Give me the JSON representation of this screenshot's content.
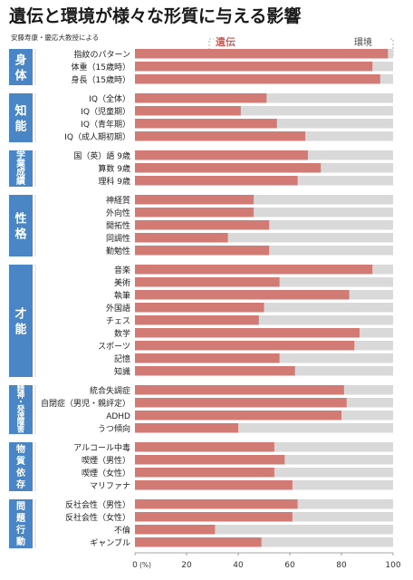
{
  "chart_data": {
    "type": "bar",
    "stacked": true,
    "orientation": "horizontal",
    "title": "遺伝と環境が様々な形質に与える影響",
    "source": "安藤寿康・慶応大教授による",
    "legend": [
      "遺伝",
      "環境"
    ],
    "colors": {
      "genetic": "#d27a74",
      "environment": "#d9d9d9",
      "group_box": "#4a86c5",
      "group_text": "#ffffff"
    },
    "xlim": [
      0,
      100
    ],
    "x_ticks": [
      "0",
      "20",
      "40",
      "60",
      "80",
      "100"
    ],
    "x_unit": "(%)",
    "groups": [
      {
        "name": "身体",
        "label_chars": [
          "身",
          "体"
        ],
        "items": [
          {
            "label": "指紋のパターン",
            "value": 98
          },
          {
            "label": "体重（15歳時）",
            "value": 92
          },
          {
            "label": "身長（15歳時）",
            "value": 95
          }
        ]
      },
      {
        "name": "知能",
        "label_chars": [
          "知",
          "能"
        ],
        "items": [
          {
            "label": "IQ（全体）",
            "value": 51
          },
          {
            "label": "IQ（児童期）",
            "value": 41
          },
          {
            "label": "IQ（青年期）",
            "value": 55
          },
          {
            "label": "IQ（成人期初期）",
            "value": 66
          }
        ]
      },
      {
        "name": "学業成績",
        "label_chars": [
          "学",
          "業",
          "成",
          "績"
        ],
        "items": [
          {
            "label": "国（英）語 9歳",
            "value": 67
          },
          {
            "label": "算数 9歳",
            "value": 72
          },
          {
            "label": "理科 9歳",
            "value": 63
          }
        ]
      },
      {
        "name": "性格",
        "label_chars": [
          "性",
          "格"
        ],
        "items": [
          {
            "label": "神経質",
            "value": 46
          },
          {
            "label": "外向性",
            "value": 46
          },
          {
            "label": "開拓性",
            "value": 52
          },
          {
            "label": "同調性",
            "value": 36
          },
          {
            "label": "勤勉性",
            "value": 52
          }
        ]
      },
      {
        "name": "才能",
        "label_chars": [
          "才",
          "能"
        ],
        "items": [
          {
            "label": "音楽",
            "value": 92
          },
          {
            "label": "美術",
            "value": 56
          },
          {
            "label": "執筆",
            "value": 83
          },
          {
            "label": "外国語",
            "value": 50
          },
          {
            "label": "チェス",
            "value": 48
          },
          {
            "label": "数学",
            "value": 87
          },
          {
            "label": "スポーツ",
            "value": 85
          },
          {
            "label": "記憶",
            "value": 56
          },
          {
            "label": "知識",
            "value": 62
          }
        ]
      },
      {
        "name": "精神・発達障害",
        "label_chars": [
          "精",
          "神",
          "・",
          "発",
          "達",
          "障",
          "害"
        ],
        "items": [
          {
            "label": "統合失調症",
            "value": 81
          },
          {
            "label": "自閉症（男児・親評定）",
            "value": 82
          },
          {
            "label": "ADHD",
            "value": 80
          },
          {
            "label": "うつ傾向",
            "value": 40
          }
        ]
      },
      {
        "name": "物質依存",
        "label_chars": [
          "物",
          "質",
          "依",
          "存"
        ],
        "items": [
          {
            "label": "アルコール中毒",
            "value": 54
          },
          {
            "label": "喫煙（男性）",
            "value": 58
          },
          {
            "label": "喫煙（女性）",
            "value": 54
          },
          {
            "label": "マリファナ",
            "value": 61
          }
        ]
      },
      {
        "name": "問題行動",
        "label_chars": [
          "問",
          "題",
          "行",
          "動"
        ],
        "items": [
          {
            "label": "反社会性（男性）",
            "value": 63
          },
          {
            "label": "反社会性（女性）",
            "value": 61
          },
          {
            "label": "不倫",
            "value": 31
          },
          {
            "label": "ギャンブル",
            "value": 49
          }
        ]
      }
    ]
  }
}
